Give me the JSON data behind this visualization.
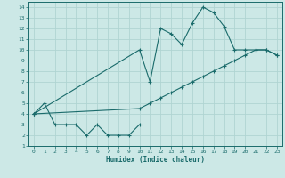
{
  "xlabel": "Humidex (Indice chaleur)",
  "bg_color": "#cce8e6",
  "grid_color": "#b0d4d2",
  "line_color": "#1a6b6b",
  "xlim": [
    -0.5,
    23.5
  ],
  "ylim": [
    1,
    14.5
  ],
  "xticks": [
    0,
    1,
    2,
    3,
    4,
    5,
    6,
    7,
    8,
    9,
    10,
    11,
    12,
    13,
    14,
    15,
    16,
    17,
    18,
    19,
    20,
    21,
    22,
    23
  ],
  "yticks": [
    1,
    2,
    3,
    4,
    5,
    6,
    7,
    8,
    9,
    10,
    11,
    12,
    13,
    14
  ],
  "line1_x": [
    0,
    1,
    2,
    3,
    4,
    5,
    6,
    7,
    8,
    9,
    10
  ],
  "line1_y": [
    4,
    5,
    3,
    3,
    3,
    2,
    3,
    2,
    2,
    2,
    3
  ],
  "line2_x": [
    0,
    10,
    11,
    12,
    13,
    14,
    15,
    16,
    17,
    18,
    19,
    20,
    21,
    22,
    23
  ],
  "line2_y": [
    4,
    10,
    7,
    12,
    11.5,
    10.5,
    12.5,
    14,
    13.5,
    12.2,
    10,
    10,
    10,
    10,
    9.5
  ],
  "line3_x": [
    0,
    10,
    11,
    12,
    13,
    14,
    15,
    16,
    17,
    18,
    19,
    20,
    21,
    22,
    23
  ],
  "line3_y": [
    4,
    4.5,
    5,
    5.5,
    6,
    6.5,
    7,
    7.5,
    8,
    8.5,
    9,
    9.5,
    10,
    10,
    9.5
  ]
}
